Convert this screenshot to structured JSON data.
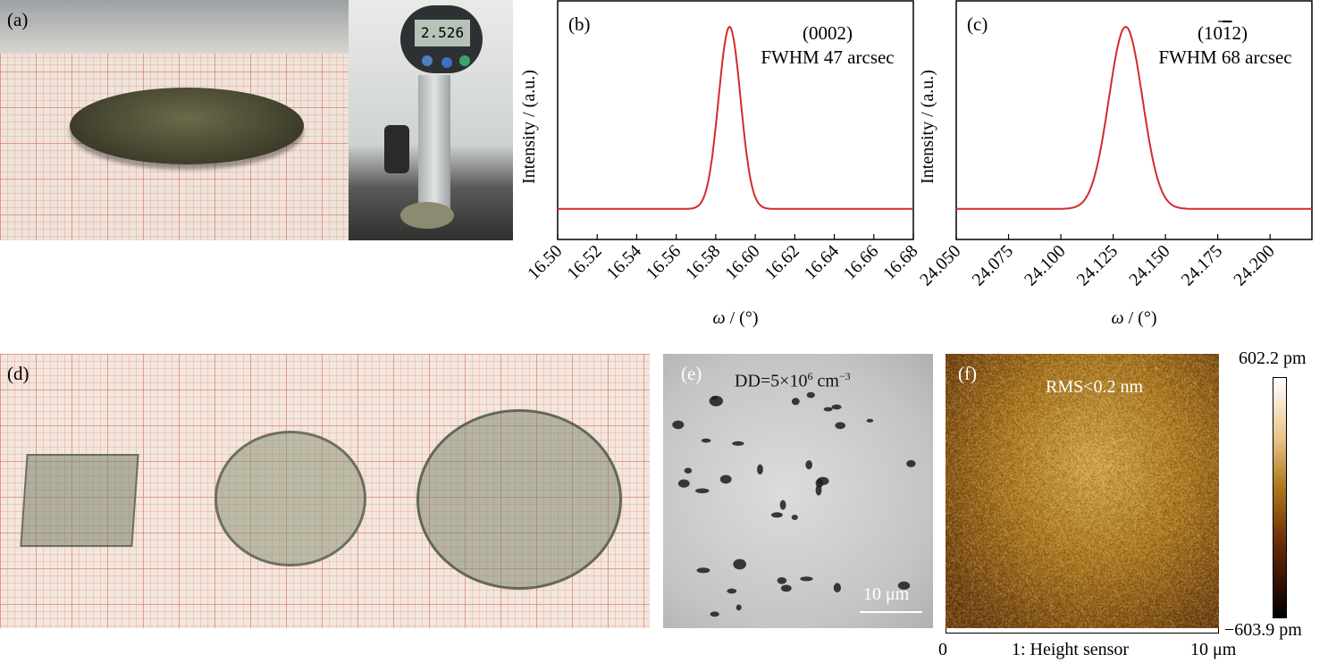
{
  "panels": {
    "a": {
      "label": "(a)",
      "gauge_reading": "2.526"
    },
    "b": {
      "label": "(b)",
      "reflection": "(0002)",
      "fwhm": "FWHM 47 arcsec"
    },
    "c": {
      "label": "(c)",
      "reflection_prefix": "(10",
      "reflection_bar": "1",
      "reflection_suffix": "2)",
      "fwhm": "FWHM 68 arcsec"
    },
    "d": {
      "label": "(d)"
    },
    "e": {
      "label": "(e)",
      "annotation": "DD=5×10",
      "annotation_exp": "6",
      "annotation_unit": " cm",
      "annotation_unit_exp": "−3",
      "scalebar": "10 μm"
    },
    "f": {
      "label": "(f)",
      "annotation": "RMS<0.2 nm",
      "colorbar_max": "602.2 pm",
      "colorbar_min": "−603.9 pm",
      "axis_start": "0",
      "axis_title": "1: Height sensor",
      "axis_end": "10 μm"
    }
  },
  "chart_data": [
    {
      "type": "line",
      "panel": "b",
      "xlabel_symbol": "ω",
      "xlabel_unit": " / (°)",
      "ylabel": "Intensity / (a.u.)",
      "xlim": [
        16.5,
        16.68
      ],
      "x_ticks": [
        "16.50",
        "16.52",
        "16.54",
        "16.56",
        "16.58",
        "16.60",
        "16.62",
        "16.64",
        "16.66",
        "16.68"
      ],
      "color": "#d42a2a",
      "peak": {
        "center": 16.587,
        "fwhm_deg": 0.0131
      },
      "series": [
        {
          "x": [
            16.5,
            16.52,
            16.54,
            16.56,
            16.57,
            16.575,
            16.58,
            16.583,
            16.587,
            16.591,
            16.594,
            16.6,
            16.61,
            16.62,
            16.64,
            16.66,
            16.68
          ],
          "y": [
            0.02,
            0.02,
            0.02,
            0.025,
            0.04,
            0.12,
            0.45,
            0.75,
            1.0,
            0.72,
            0.45,
            0.12,
            0.04,
            0.03,
            0.02,
            0.02,
            0.02
          ]
        }
      ]
    },
    {
      "type": "line",
      "panel": "c",
      "xlabel_symbol": "ω",
      "xlabel_unit": " / (°)",
      "ylabel": "Intensity / (a.u.)",
      "xlim": [
        24.05,
        24.22
      ],
      "x_ticks": [
        "24.050",
        "24.075",
        "24.100",
        "24.125",
        "24.150",
        "24.175",
        "24.200"
      ],
      "color": "#d42a2a",
      "peak": {
        "center": 24.131,
        "fwhm_deg": 0.0189
      },
      "series": [
        {
          "x": [
            24.05,
            24.08,
            24.1,
            24.11,
            24.115,
            24.12,
            24.125,
            24.131,
            24.137,
            24.142,
            24.147,
            24.152,
            24.16,
            24.18,
            24.2,
            24.22
          ],
          "y": [
            0.02,
            0.02,
            0.025,
            0.04,
            0.12,
            0.45,
            0.8,
            1.0,
            0.82,
            0.5,
            0.2,
            0.05,
            0.025,
            0.02,
            0.02,
            0.02
          ]
        }
      ]
    }
  ]
}
